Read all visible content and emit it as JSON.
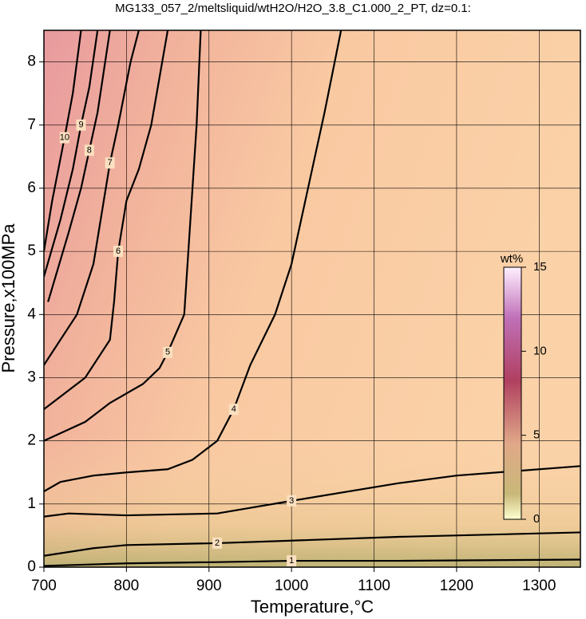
{
  "chart_data": {
    "type": "contour",
    "title": "MG133_057_2/meltsliquid/wtH2O/H2O_3.8_C1.000_2_PT, dz=0.1:",
    "xlabel": "Temperature,°C",
    "ylabel": "Pressure,x100MPa",
    "xlim": [
      700,
      1350
    ],
    "ylim": [
      0,
      8.5
    ],
    "xticks": [
      700,
      800,
      900,
      1000,
      1100,
      1200,
      1300
    ],
    "yticks": [
      0,
      1,
      2,
      3,
      4,
      5,
      6,
      7,
      8
    ],
    "grid": true,
    "colorbar": {
      "label": "wt%",
      "lim": [
        0,
        15
      ],
      "ticks": [
        0,
        5,
        10,
        15
      ]
    },
    "contours": [
      {
        "level": 1,
        "x": [
          700,
          800,
          910,
          1000,
          1130,
          1350
        ],
        "y": [
          0.02,
          0.06,
          0.08,
          0.1,
          0.1,
          0.12
        ]
      },
      {
        "level": 2,
        "x": [
          700,
          760,
          800,
          910,
          1000,
          1130,
          1350
        ],
        "y": [
          0.18,
          0.3,
          0.35,
          0.38,
          0.42,
          0.48,
          0.55
        ]
      },
      {
        "level": 3,
        "x": [
          700,
          730,
          800,
          910,
          1000,
          1130,
          1200,
          1350
        ],
        "y": [
          0.8,
          0.85,
          0.82,
          0.85,
          1.05,
          1.33,
          1.45,
          1.6
        ]
      },
      {
        "level": 4,
        "x": [
          700,
          720,
          760,
          800,
          850,
          880,
          910,
          930,
          950,
          980,
          1000,
          1020,
          1040,
          1060
        ],
        "y": [
          1.2,
          1.35,
          1.45,
          1.5,
          1.55,
          1.7,
          2.0,
          2.5,
          3.2,
          4.0,
          4.8,
          6.0,
          7.2,
          8.5
        ]
      },
      {
        "level": 5,
        "x": [
          700,
          750,
          780,
          820,
          840,
          850,
          870,
          875,
          880,
          885,
          890
        ],
        "y": [
          2.0,
          2.3,
          2.6,
          2.9,
          3.15,
          3.4,
          4.0,
          5.0,
          6.0,
          7.0,
          8.5
        ]
      },
      {
        "level": 6,
        "x": [
          700,
          750,
          780,
          785,
          790,
          800,
          815,
          830,
          850
        ],
        "y": [
          2.5,
          3.0,
          3.6,
          4.2,
          5.0,
          5.8,
          6.3,
          7.0,
          8.5
        ]
      },
      {
        "level": 7,
        "x": [
          700,
          740,
          760,
          770,
          780,
          790,
          805,
          815
        ],
        "y": [
          3.2,
          4.0,
          4.8,
          5.6,
          6.4,
          7.0,
          8.0,
          8.5
        ]
      },
      {
        "level": 8,
        "x": [
          705,
          730,
          745,
          755,
          765,
          780
        ],
        "y": [
          4.2,
          5.3,
          6.0,
          6.6,
          7.2,
          8.5
        ]
      },
      {
        "level": 9,
        "x": [
          700,
          720,
          735,
          745,
          755,
          765
        ],
        "y": [
          4.6,
          5.5,
          6.3,
          7.0,
          7.6,
          8.5
        ]
      },
      {
        "level": 10,
        "x": [
          700,
          710,
          725,
          735,
          745
        ],
        "y": [
          5.0,
          5.8,
          6.8,
          7.5,
          8.5
        ]
      }
    ]
  }
}
